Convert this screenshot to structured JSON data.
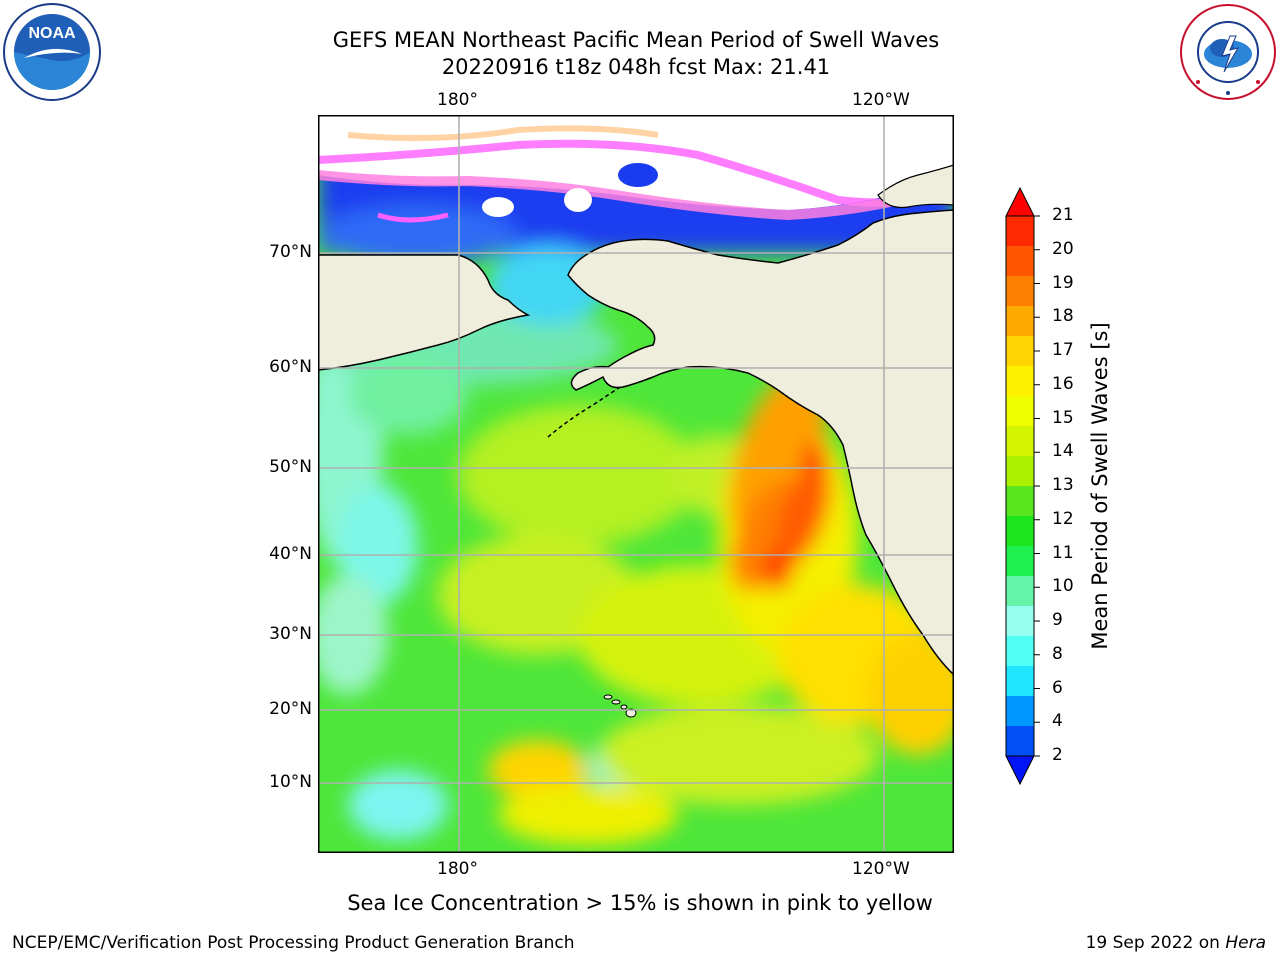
{
  "header": {
    "title_line1": "GEFS MEAN Northeast Pacific Mean Period of Swell Waves",
    "title_line2": "20220916 t18z 048h fcst   Max: 21.41"
  },
  "map": {
    "lon_labels": [
      "180°",
      "120°W"
    ],
    "lat_labels": [
      "70°N",
      "60°N",
      "50°N",
      "40°N",
      "30°N",
      "20°N",
      "10°N"
    ],
    "land_color": "#efeddc",
    "grid_color": "#b0b0b0"
  },
  "colorbar": {
    "label": "Mean Period of Swell Waves [s]",
    "ticks": [
      "21",
      "20",
      "19",
      "18",
      "17",
      "16",
      "15",
      "14",
      "13",
      "12",
      "11",
      "10",
      "9",
      "8",
      "6",
      "4",
      "2"
    ],
    "colors": [
      "#ff2a00",
      "#ff5500",
      "#ff8000",
      "#ffaa00",
      "#ffd400",
      "#fff000",
      "#f0ff00",
      "#d4f500",
      "#aaf000",
      "#5ae61e",
      "#1ee61e",
      "#1ef050",
      "#64f5aa",
      "#96fff0",
      "#50fff5",
      "#1ee6ff",
      "#0096ff",
      "#0050f5"
    ],
    "under_color": "#0014f5",
    "over_color": "#ff0000"
  },
  "caption": "Sea Ice Concentration > 15% is shown in pink to yellow",
  "footer": {
    "left": "NCEP/EMC/Verification Post Processing Product Generation Branch",
    "right_date": "19 Sep 2022 on ",
    "right_machine": "Hera"
  },
  "logos": {
    "left": "NOAA",
    "right_text": "NATIONAL WEATHER SERVICE"
  }
}
